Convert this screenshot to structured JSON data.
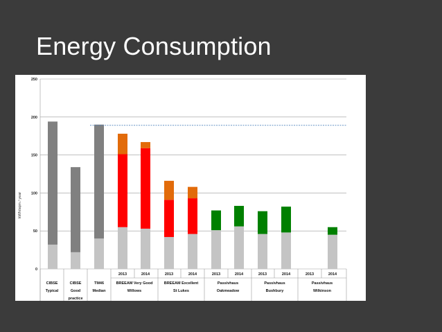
{
  "slide": {
    "title": "Energy Consumption"
  },
  "colors": {
    "background": "#3b3b3b",
    "base": "#c4c4c4",
    "typical": "#808080",
    "red": "#ff0000",
    "orange": "#e26b0a",
    "green": "#008000",
    "dashed_line": "#4f81bd",
    "grid": "#9a9a9a"
  },
  "chart_data": {
    "type": "bar",
    "title": "",
    "ylabel": "kWh/sqm / year",
    "ylim": [
      0,
      250
    ],
    "yticks": [
      0,
      50,
      100,
      150,
      200,
      250
    ],
    "grid": true,
    "stacked": true,
    "reference_line": {
      "value": 189,
      "style": "dashed"
    },
    "bars": [
      {
        "group": 0,
        "segments": [
          {
            "value": 32,
            "color": "base"
          },
          {
            "value": 162,
            "color": "typical"
          }
        ]
      },
      {
        "group": 1,
        "segments": [
          {
            "value": 22,
            "color": "base"
          },
          {
            "value": 112,
            "color": "typical"
          }
        ]
      },
      {
        "group": 2,
        "segments": [
          {
            "value": 40,
            "color": "base"
          },
          {
            "value": 150,
            "color": "typical"
          }
        ]
      },
      {
        "group": 3,
        "year": "2013",
        "segments": [
          {
            "value": 55,
            "color": "base"
          },
          {
            "value": 96,
            "color": "red"
          },
          {
            "value": 27,
            "color": "orange"
          }
        ]
      },
      {
        "group": 3,
        "year": "2014",
        "segments": [
          {
            "value": 53,
            "color": "base"
          },
          {
            "value": 106,
            "color": "red"
          },
          {
            "value": 8,
            "color": "orange"
          }
        ]
      },
      {
        "group": 4,
        "year": "2013",
        "segments": [
          {
            "value": 42,
            "color": "base"
          },
          {
            "value": 49,
            "color": "red"
          },
          {
            "value": 25,
            "color": "orange"
          }
        ]
      },
      {
        "group": 4,
        "year": "2014",
        "segments": [
          {
            "value": 46,
            "color": "base"
          },
          {
            "value": 47,
            "color": "red"
          },
          {
            "value": 15,
            "color": "orange"
          }
        ]
      },
      {
        "group": 5,
        "year": "2013",
        "segments": [
          {
            "value": 51,
            "color": "base"
          },
          {
            "value": 26,
            "color": "green"
          }
        ]
      },
      {
        "group": 5,
        "year": "2014",
        "segments": [
          {
            "value": 56,
            "color": "base"
          },
          {
            "value": 27,
            "color": "green"
          }
        ]
      },
      {
        "group": 6,
        "year": "2013",
        "segments": [
          {
            "value": 46,
            "color": "base"
          },
          {
            "value": 30,
            "color": "green"
          }
        ]
      },
      {
        "group": 6,
        "year": "2014",
        "segments": [
          {
            "value": 48,
            "color": "base"
          },
          {
            "value": 34,
            "color": "green"
          }
        ]
      },
      {
        "group": 7,
        "year": "2013",
        "segments": []
      },
      {
        "group": 7,
        "year": "2014",
        "segments": [
          {
            "value": 45,
            "color": "base"
          },
          {
            "value": 10,
            "color": "green"
          }
        ]
      }
    ],
    "groups": [
      {
        "lines": [
          "CIBSE",
          "Typical"
        ]
      },
      {
        "lines": [
          "CIBSE",
          "Good",
          "practice"
        ]
      },
      {
        "lines": [
          "TM46",
          "Median"
        ]
      },
      {
        "lines": [
          "BREEAM Very Good",
          "Willows"
        ]
      },
      {
        "lines": [
          "BREEAM Excellent",
          "St Lukes"
        ]
      },
      {
        "lines": [
          "Passivhaus",
          "Oakmeadow"
        ]
      },
      {
        "lines": [
          "Passivhaus",
          "Bushbury"
        ]
      },
      {
        "lines": [
          "Passivhaus",
          "Wilkinson"
        ]
      }
    ]
  }
}
